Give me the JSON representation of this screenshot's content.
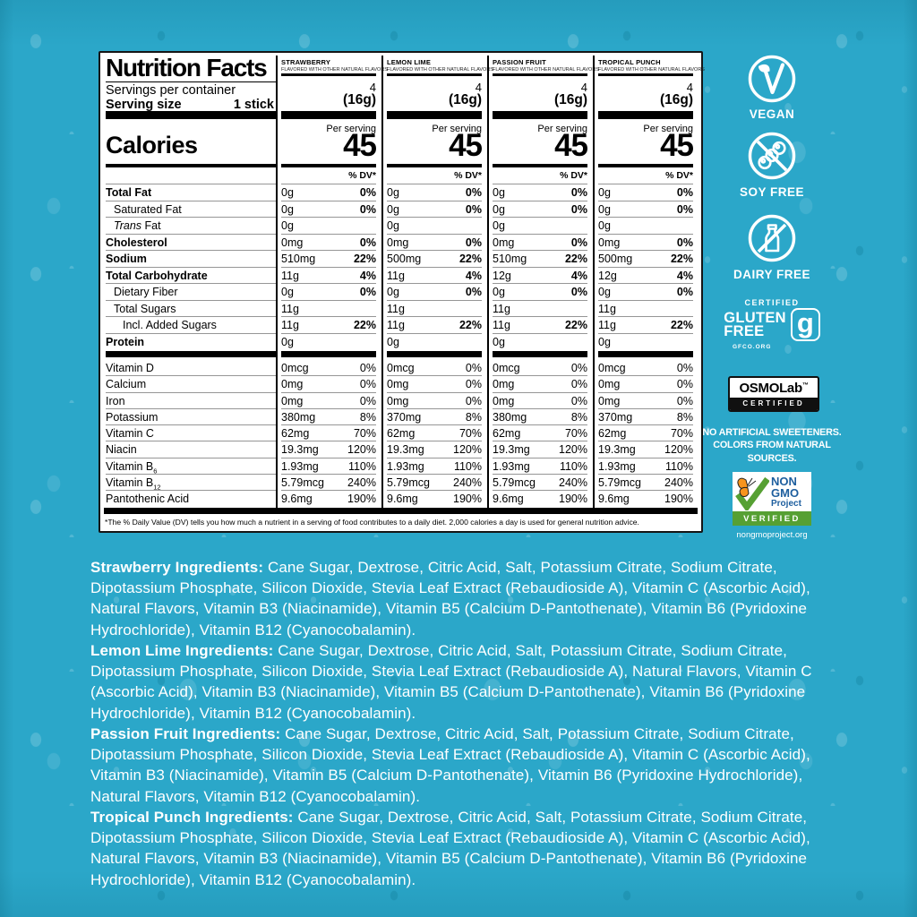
{
  "colors": {
    "background": "#2BA7C9",
    "label_bg": "#FFFFFF",
    "label_text": "#000000",
    "badge_white": "#FFFFFF",
    "nongmo_blue": "#1D5E9E",
    "nongmo_green": "#56A033",
    "nongmo_orange": "#F7941D",
    "osmo_bar_black": "#101010"
  },
  "label": {
    "title": "Nutrition Facts",
    "servings_per_container_label": "Servings per container",
    "serving_size_label": "Serving size",
    "serving_size_value": "1 stick",
    "calories_label": "Calories",
    "per_serving_label": "Per serving",
    "dv_header": "% DV*",
    "flavor_subtitle": "FLAVORED WITH OTHER NATURAL FLAVORS",
    "footnote": "*The % Daily Value (DV) tells you how much a nutrient in a serving of food contributes to a daily diet. 2,000 calories a day is used for general nutrition advice.",
    "nutrient_rows": [
      {
        "label": "Total Fat",
        "bold": true,
        "indent": 0
      },
      {
        "label": "Saturated Fat",
        "bold": false,
        "indent": 1
      },
      {
        "label": "Trans Fat",
        "bold": false,
        "indent": 1,
        "italic_prefix": "Trans",
        "rest": " Fat"
      },
      {
        "label": "Cholesterol",
        "bold": true,
        "indent": 0
      },
      {
        "label": "Sodium",
        "bold": true,
        "indent": 0
      },
      {
        "label": "Total Carbohydrate",
        "bold": true,
        "indent": 0
      },
      {
        "label": "Dietary Fiber",
        "bold": false,
        "indent": 1
      },
      {
        "label": "Total Sugars",
        "bold": false,
        "indent": 1
      },
      {
        "label": "Incl. Added Sugars",
        "bold": false,
        "indent": 2
      },
      {
        "label": "Protein",
        "bold": true,
        "indent": 0
      }
    ],
    "vitamin_rows": [
      {
        "label": "Vitamin D"
      },
      {
        "label": "Calcium"
      },
      {
        "label": "Iron"
      },
      {
        "label": "Potassium"
      },
      {
        "label": "Vitamin C"
      },
      {
        "label": "Niacin"
      },
      {
        "label": "Vitamin B",
        "sub": "6"
      },
      {
        "label": "Vitamin B",
        "sub": "12"
      },
      {
        "label": "Pantothenic Acid"
      }
    ],
    "flavors": [
      {
        "name": "STRAWBERRY",
        "servings": "4",
        "serving_weight": "(16g)",
        "calories": "45",
        "nutrients": [
          [
            "0g",
            "0%"
          ],
          [
            "0g",
            "0%"
          ],
          [
            "0g",
            ""
          ],
          [
            "0mg",
            "0%"
          ],
          [
            "510mg",
            "22%"
          ],
          [
            "11g",
            "4%"
          ],
          [
            "0g",
            "0%"
          ],
          [
            "11g",
            ""
          ],
          [
            "11g",
            "22%"
          ],
          [
            "0g",
            ""
          ]
        ],
        "vitamins": [
          [
            "0mcg",
            "0%"
          ],
          [
            "0mg",
            "0%"
          ],
          [
            "0mg",
            "0%"
          ],
          [
            "380mg",
            "8%"
          ],
          [
            "62mg",
            "70%"
          ],
          [
            "19.3mg",
            "120%"
          ],
          [
            "1.93mg",
            "110%"
          ],
          [
            "5.79mcg",
            "240%"
          ],
          [
            "9.6mg",
            "190%"
          ]
        ]
      },
      {
        "name": "LEMON LIME",
        "servings": "4",
        "serving_weight": "(16g)",
        "calories": "45",
        "nutrients": [
          [
            "0g",
            "0%"
          ],
          [
            "0g",
            "0%"
          ],
          [
            "0g",
            ""
          ],
          [
            "0mg",
            "0%"
          ],
          [
            "500mg",
            "22%"
          ],
          [
            "11g",
            "4%"
          ],
          [
            "0g",
            "0%"
          ],
          [
            "11g",
            ""
          ],
          [
            "11g",
            "22%"
          ],
          [
            "0g",
            ""
          ]
        ],
        "vitamins": [
          [
            "0mcg",
            "0%"
          ],
          [
            "0mg",
            "0%"
          ],
          [
            "0mg",
            "0%"
          ],
          [
            "370mg",
            "8%"
          ],
          [
            "62mg",
            "70%"
          ],
          [
            "19.3mg",
            "120%"
          ],
          [
            "1.93mg",
            "110%"
          ],
          [
            "5.79mcg",
            "240%"
          ],
          [
            "9.6mg",
            "190%"
          ]
        ]
      },
      {
        "name": "PASSION FRUIT",
        "servings": "4",
        "serving_weight": "(16g)",
        "calories": "45",
        "nutrients": [
          [
            "0g",
            "0%"
          ],
          [
            "0g",
            "0%"
          ],
          [
            "0g",
            ""
          ],
          [
            "0mg",
            "0%"
          ],
          [
            "510mg",
            "22%"
          ],
          [
            "12g",
            "4%"
          ],
          [
            "0g",
            "0%"
          ],
          [
            "11g",
            ""
          ],
          [
            "11g",
            "22%"
          ],
          [
            "0g",
            ""
          ]
        ],
        "vitamins": [
          [
            "0mcg",
            "0%"
          ],
          [
            "0mg",
            "0%"
          ],
          [
            "0mg",
            "0%"
          ],
          [
            "380mg",
            "8%"
          ],
          [
            "62mg",
            "70%"
          ],
          [
            "19.3mg",
            "120%"
          ],
          [
            "1.93mg",
            "110%"
          ],
          [
            "5.79mcg",
            "240%"
          ],
          [
            "9.6mg",
            "190%"
          ]
        ]
      },
      {
        "name": "TROPICAL PUNCH",
        "servings": "4",
        "serving_weight": "(16g)",
        "calories": "45",
        "nutrients": [
          [
            "0g",
            "0%"
          ],
          [
            "0g",
            "0%"
          ],
          [
            "0g",
            ""
          ],
          [
            "0mg",
            "0%"
          ],
          [
            "500mg",
            "22%"
          ],
          [
            "12g",
            "4%"
          ],
          [
            "0g",
            "0%"
          ],
          [
            "11g",
            ""
          ],
          [
            "11g",
            "22%"
          ],
          [
            "0g",
            ""
          ]
        ],
        "vitamins": [
          [
            "0mcg",
            "0%"
          ],
          [
            "0mg",
            "0%"
          ],
          [
            "0mg",
            "0%"
          ],
          [
            "370mg",
            "8%"
          ],
          [
            "62mg",
            "70%"
          ],
          [
            "19.3mg",
            "120%"
          ],
          [
            "1.93mg",
            "110%"
          ],
          [
            "5.79mcg",
            "240%"
          ],
          [
            "9.6mg",
            "190%"
          ]
        ]
      }
    ]
  },
  "badges": {
    "vegan": {
      "label": "VEGAN"
    },
    "soy_free": {
      "label": "SOY FREE"
    },
    "dairy_free": {
      "label": "DAIRY FREE"
    },
    "gluten_free": {
      "certified": "CERTIFIED",
      "line1": "GLUTEN",
      "line2": "FREE",
      "glyph": "g",
      "org": "GFCO.ORG"
    },
    "osmo": {
      "brand": "OSMOLab",
      "tm": "™",
      "certified": "CERTIFIED"
    },
    "claims": [
      "NO ARTIFICIAL SWEETENERS.",
      "COLORS FROM NATURAL SOURCES."
    ],
    "non_gmo": {
      "line1": "NON",
      "line2": "GMO",
      "line3": "Project",
      "verified": "VERIFIED",
      "url": "nongmoproject.org"
    }
  },
  "ingredients": [
    {
      "heading": "Strawberry Ingredients:",
      "body": "Cane Sugar, Dextrose, Citric Acid, Salt, Potassium Citrate, Sodium Citrate, Dipotassium Phosphate, Silicon Dioxide, Stevia Leaf Extract (Rebaudioside A), Vitamin C (Ascorbic Acid), Natural Flavors, Vitamin B3 (Niacinamide), Vitamin B5 (Calcium D-Pantothenate), Vitamin B6 (Pyridoxine Hydrochloride), Vitamin B12 (Cyanocobalamin)."
    },
    {
      "heading": "Lemon Lime Ingredients:",
      "body": "Cane Sugar, Dextrose, Citric Acid, Salt, Potassium Citrate, Sodium Citrate, Dipotassium Phosphate, Silicon Dioxide, Stevia Leaf Extract (Rebaudioside A), Natural Flavors, Vitamin C (Ascorbic Acid), Vitamin B3 (Niacinamide), Vitamin B5 (Calcium D-Pantothenate), Vitamin B6 (Pyridoxine Hydrochloride), Vitamin B12 (Cyanocobalamin)."
    },
    {
      "heading": "Passion Fruit Ingredients:",
      "body": "Cane Sugar, Dextrose, Citric Acid, Salt, Potassium Citrate, Sodium Citrate, Dipotassium Phosphate, Silicon Dioxide, Stevia Leaf Extract (Rebaudioside A), Vitamin C (Ascorbic Acid), Vitamin B3 (Niacinamide), Vitamin B5 (Calcium D-Pantothenate), Vitamin B6 (Pyridoxine Hydrochloride), Natural Flavors, Vitamin B12 (Cyanocobalamin)."
    },
    {
      "heading": "Tropical Punch Ingredients:",
      "body": "Cane Sugar, Dextrose, Citric Acid, Salt, Potassium Citrate, Sodium Citrate, Dipotassium Phosphate, Silicon Dioxide, Stevia Leaf Extract (Rebaudioside A), Vitamin C (Ascorbic Acid), Natural Flavors, Vitamin B3 (Niacinamide), Vitamin B5 (Calcium D-Pantothenate), Vitamin B6 (Pyridoxine Hydrochloride), Vitamin B12 (Cyanocobalamin)."
    }
  ]
}
